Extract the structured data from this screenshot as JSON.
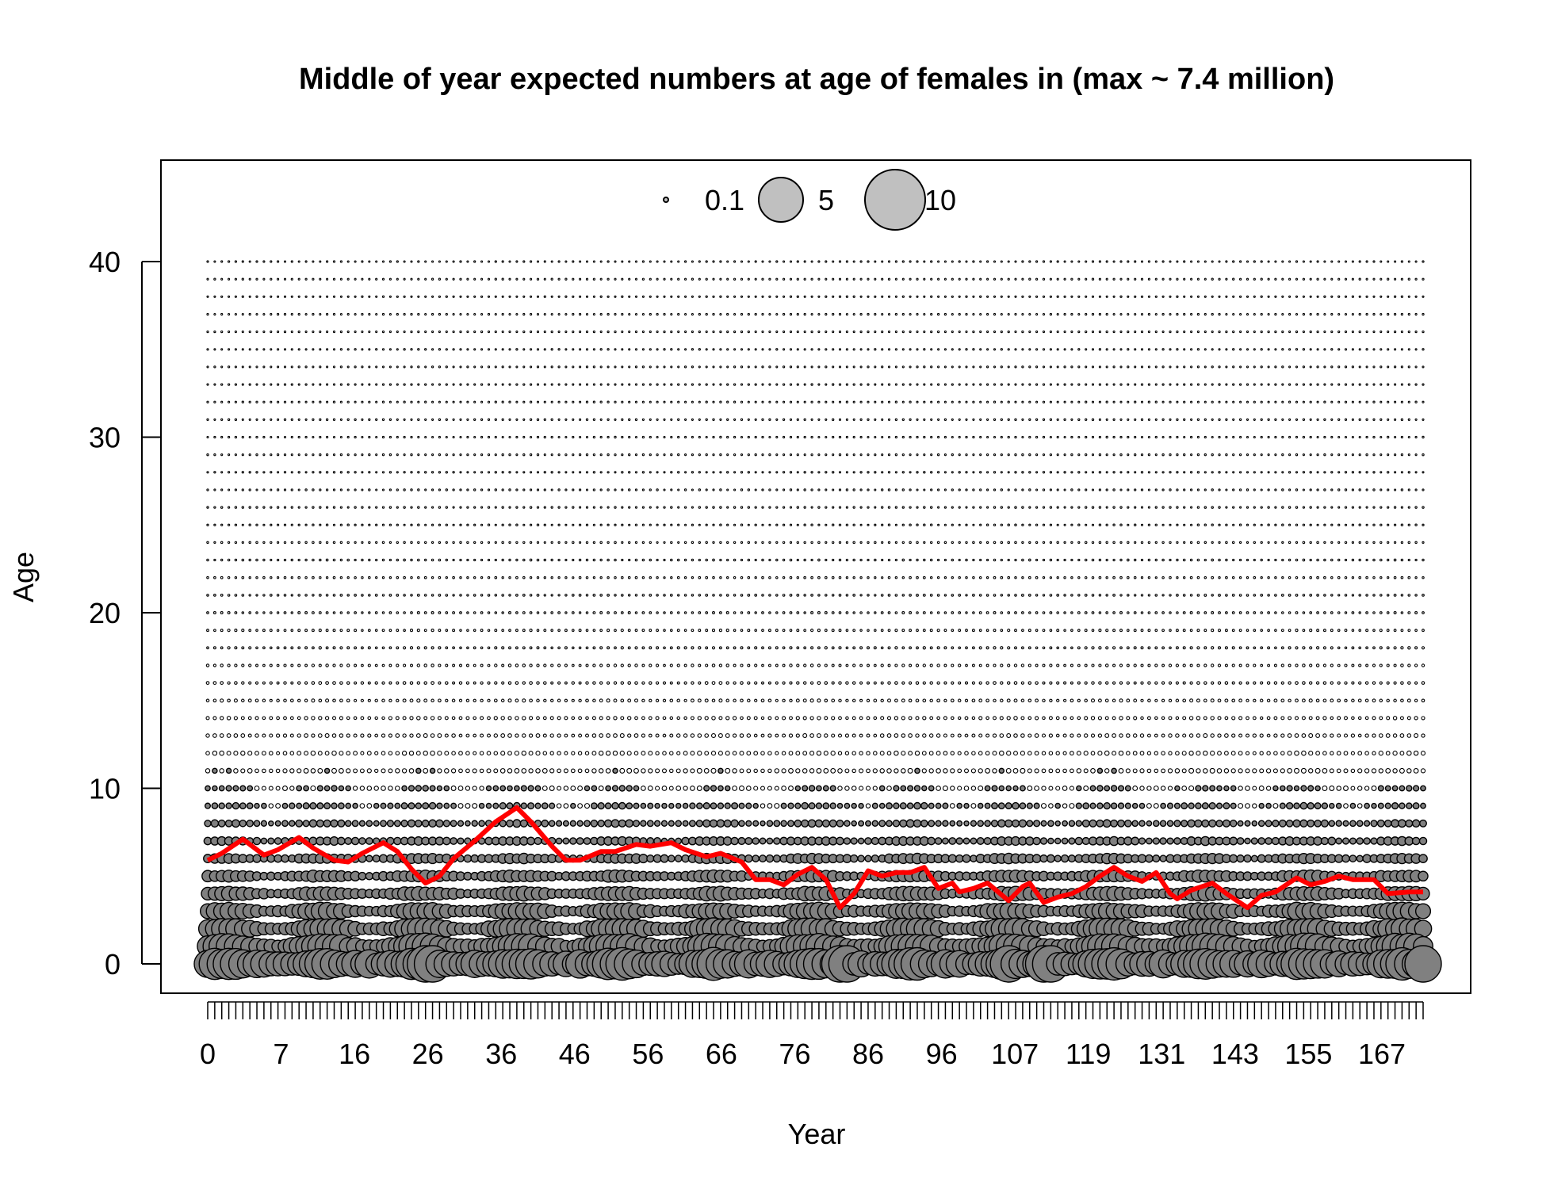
{
  "chart_data": {
    "type": "bubble",
    "title": "Middle of year expected numbers at age of females in (max ~ 7.4 million)",
    "xlabel": "Year",
    "ylabel": "Age",
    "xlim": [
      0,
      174
    ],
    "ylim": [
      -2,
      45
    ],
    "x_tick_labels": [
      "0",
      "7",
      "16",
      "26",
      "36",
      "46",
      "56",
      "66",
      "76",
      "86",
      "96",
      "107",
      "119",
      "131",
      "143",
      "155",
      "167"
    ],
    "y_ticks": [
      0,
      10,
      20,
      30,
      40
    ],
    "ages": [
      0,
      40
    ],
    "years": [
      1,
      174
    ],
    "legend": {
      "position": "top",
      "entries": [
        {
          "label": "0.1",
          "value": 0.1
        },
        {
          "label": "5",
          "value": 5
        },
        {
          "label": "10",
          "value": 10
        }
      ]
    },
    "bubble_fill": "#808080",
    "legend_fill": "#c0c0c0",
    "bubble_stroke": "#000000",
    "mean_age_line": {
      "color": "#ff0000",
      "points": [
        [
          1,
          5.9
        ],
        [
          3,
          6.3
        ],
        [
          6,
          7.1
        ],
        [
          9,
          6.2
        ],
        [
          11,
          6.5
        ],
        [
          14,
          7.2
        ],
        [
          16,
          6.6
        ],
        [
          19,
          5.9
        ],
        [
          21,
          5.8
        ],
        [
          23,
          6.3
        ],
        [
          26,
          6.9
        ],
        [
          28,
          6.4
        ],
        [
          30,
          5.4
        ],
        [
          32,
          4.6
        ],
        [
          34,
          5.0
        ],
        [
          36,
          6.0
        ],
        [
          39,
          7.0
        ],
        [
          42,
          8.1
        ],
        [
          45,
          8.9
        ],
        [
          47,
          8.1
        ],
        [
          50,
          6.7
        ],
        [
          52,
          5.9
        ],
        [
          54,
          5.9
        ],
        [
          57,
          6.4
        ],
        [
          59,
          6.4
        ],
        [
          62,
          6.8
        ],
        [
          64,
          6.7
        ],
        [
          67,
          6.9
        ],
        [
          69,
          6.5
        ],
        [
          72,
          6.1
        ],
        [
          74,
          6.3
        ],
        [
          77,
          5.8
        ],
        [
          79,
          4.8
        ],
        [
          81,
          4.8
        ],
        [
          83,
          4.5
        ],
        [
          85,
          5.1
        ],
        [
          87,
          5.5
        ],
        [
          89,
          4.8
        ],
        [
          91,
          3.2
        ],
        [
          93,
          4.0
        ],
        [
          95,
          5.3
        ],
        [
          97,
          5.0
        ],
        [
          99,
          5.2
        ],
        [
          101,
          5.2
        ],
        [
          103,
          5.5
        ],
        [
          105,
          4.3
        ],
        [
          107,
          4.6
        ],
        [
          108,
          4.1
        ],
        [
          110,
          4.3
        ],
        [
          112,
          4.6
        ],
        [
          115,
          3.6
        ],
        [
          117,
          4.4
        ],
        [
          118,
          4.6
        ],
        [
          120,
          3.5
        ],
        [
          122,
          3.8
        ],
        [
          124,
          4.0
        ],
        [
          126,
          4.4
        ],
        [
          128,
          5.0
        ],
        [
          130,
          5.5
        ],
        [
          132,
          5.0
        ],
        [
          134,
          4.7
        ],
        [
          136,
          5.2
        ],
        [
          138,
          4.0
        ],
        [
          139,
          3.7
        ],
        [
          141,
          4.2
        ],
        [
          144,
          4.6
        ],
        [
          146,
          4.0
        ],
        [
          149,
          3.2
        ],
        [
          151,
          3.9
        ],
        [
          153,
          4.1
        ],
        [
          156,
          4.9
        ],
        [
          158,
          4.5
        ],
        [
          160,
          4.7
        ],
        [
          162,
          5.0
        ],
        [
          164,
          4.8
        ],
        [
          167,
          4.8
        ],
        [
          169,
          4.0
        ],
        [
          172,
          4.1
        ],
        [
          174,
          4.1
        ]
      ]
    }
  }
}
